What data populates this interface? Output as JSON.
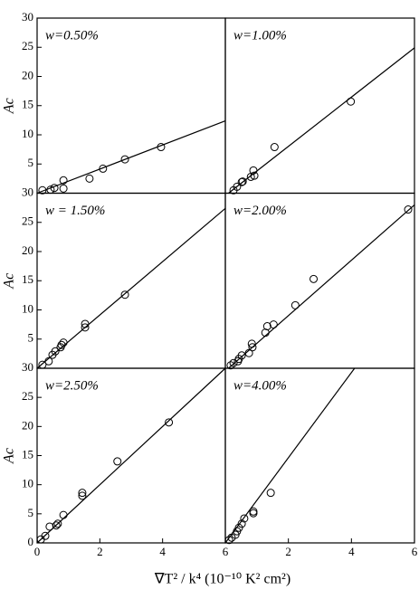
{
  "x_label": "∇T² / k⁴ (10⁻¹⁰ K² cm²)",
  "chart_data": [
    {
      "type": "scatter",
      "label": "w=0.50%",
      "ylabel": "Ac",
      "x": [
        0.17,
        0.43,
        0.55,
        0.84,
        0.84,
        1.67,
        2.1,
        2.8,
        3.95
      ],
      "values": [
        0.5,
        0.6,
        0.9,
        0.8,
        2.2,
        2.5,
        4.2,
        5.8,
        7.9
      ],
      "fit": {
        "x": [
          0,
          6
        ],
        "y": [
          0,
          12.4
        ]
      },
      "xlim": [
        0,
        6
      ],
      "ylim": [
        0,
        30
      ],
      "yticks": [
        5,
        10,
        15,
        20,
        25,
        30
      ]
    },
    {
      "type": "scatter",
      "label": "w=1.00%",
      "x": [
        0.26,
        0.37,
        0.52,
        0.55,
        0.81,
        0.89,
        0.92,
        1.56,
        3.98
      ],
      "values": [
        0.5,
        1.1,
        1.9,
        2.0,
        2.8,
        3.9,
        3.0,
        7.9,
        15.7
      ],
      "fit": {
        "x": [
          0.1,
          6
        ],
        "y": [
          0,
          24.9
        ]
      },
      "xlim": [
        0,
        6
      ],
      "ylim": [
        0,
        30
      ]
    },
    {
      "type": "scatter",
      "label": "w = 1.50%",
      "ylabel": "Ac",
      "x": [
        0.17,
        0.37,
        0.49,
        0.58,
        0.75,
        0.78,
        0.84,
        1.53,
        1.53,
        2.8
      ],
      "values": [
        0.6,
        1.2,
        2.3,
        2.9,
        3.6,
        4.0,
        4.4,
        7.0,
        7.6,
        12.6
      ],
      "fit": {
        "x": [
          0,
          6
        ],
        "y": [
          0,
          27.4
        ]
      },
      "xlim": [
        0,
        6
      ],
      "ylim": [
        0,
        30
      ],
      "yticks": [
        5,
        10,
        15,
        20,
        25,
        30
      ]
    },
    {
      "type": "scatter",
      "label": "w=2.00%",
      "x": [
        0.17,
        0.26,
        0.4,
        0.43,
        0.52,
        0.75,
        0.84,
        0.86,
        1.27,
        1.33,
        1.53,
        2.22,
        2.8,
        5.8
      ],
      "values": [
        0.5,
        0.9,
        1.2,
        1.6,
        2.2,
        2.6,
        4.2,
        3.6,
        6.1,
        7.2,
        7.5,
        10.8,
        15.3,
        27.2
      ],
      "fit": {
        "x": [
          0.1,
          6
        ],
        "y": [
          0,
          28
        ]
      },
      "xlim": [
        0,
        6
      ],
      "ylim": [
        0,
        30
      ]
    },
    {
      "type": "scatter",
      "label": "w=2.50%",
      "ylabel": "Ac",
      "x": [
        0.12,
        0.26,
        0.4,
        0.61,
        0.66,
        0.84,
        1.44,
        1.44,
        2.56,
        4.2
      ],
      "values": [
        0.6,
        1.2,
        2.8,
        3.0,
        3.3,
        4.8,
        8.1,
        8.6,
        14.0,
        20.7
      ],
      "fit": {
        "x": [
          0,
          6
        ],
        "y": [
          0,
          30
        ]
      },
      "xlim": [
        0,
        6
      ],
      "ylim": [
        0,
        30
      ],
      "yticks": [
        0,
        5,
        10,
        15,
        20,
        25,
        30
      ],
      "xticks": [
        0,
        2,
        4,
        6
      ]
    },
    {
      "type": "scatter",
      "label": "w=4.00%",
      "x": [
        0.12,
        0.2,
        0.32,
        0.37,
        0.43,
        0.52,
        0.6,
        0.89,
        0.89,
        1.44
      ],
      "values": [
        0.5,
        0.9,
        1.4,
        2.0,
        2.6,
        3.3,
        4.2,
        5.1,
        5.4,
        8.6
      ],
      "fit": {
        "x": [
          0,
          4.1
        ],
        "y": [
          0,
          30
        ]
      },
      "xlim": [
        0,
        6
      ],
      "ylim": [
        0,
        30
      ],
      "xticks": [
        2,
        4,
        6
      ]
    }
  ]
}
